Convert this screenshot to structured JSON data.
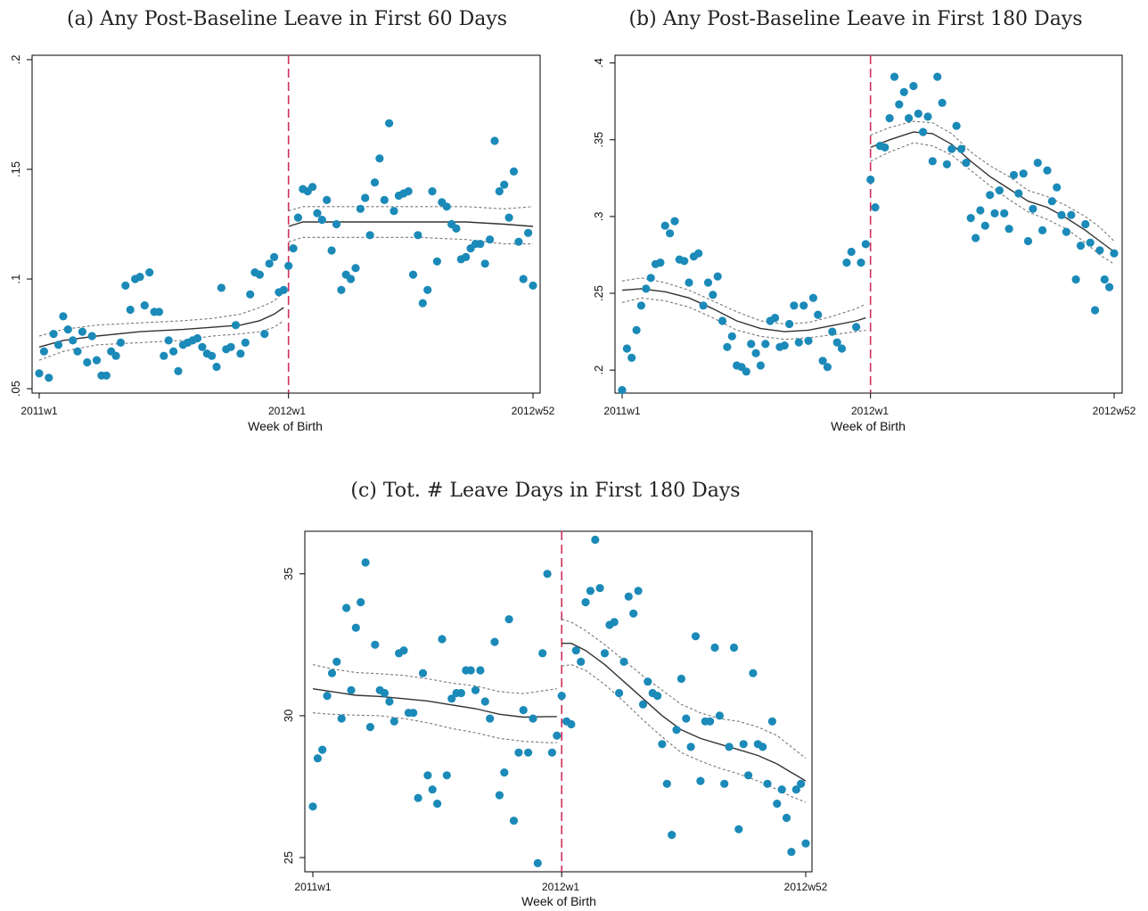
{
  "chart_data": [
    {
      "type": "scatter",
      "title": "(a) Any Post-Baseline Leave in First 60 Days",
      "xlabel": "Week of Birth",
      "ylabel": "",
      "x_ticks": [
        "2011w1",
        "2012w1",
        "2012w52"
      ],
      "y_ticks": [
        ".05",
        ".1",
        ".15",
        ".2"
      ],
      "y_tick_values": [
        0.05,
        0.1,
        0.15,
        0.2
      ],
      "xlim": [
        1,
        104
      ],
      "ylim": [
        0.048,
        0.202
      ],
      "cutoff_week": 53,
      "colors": {
        "points": "#1b8ab8",
        "fit": "#333333",
        "ci": "#777777",
        "cutoff": "#d0305a"
      },
      "x": [
        1,
        2,
        3,
        4,
        5,
        6,
        7,
        8,
        9,
        10,
        11,
        12,
        13,
        14,
        15,
        16,
        17,
        18,
        19,
        20,
        21,
        22,
        23,
        24,
        25,
        26,
        27,
        28,
        29,
        30,
        31,
        32,
        33,
        34,
        35,
        36,
        37,
        38,
        39,
        40,
        41,
        42,
        43,
        44,
        45,
        46,
        47,
        48,
        49,
        50,
        51,
        52,
        53,
        54,
        55,
        56,
        57,
        58,
        59,
        60,
        61,
        62,
        63,
        64,
        65,
        66,
        67,
        68,
        69,
        70,
        71,
        72,
        73,
        74,
        75,
        76,
        77,
        78,
        79,
        80,
        81,
        82,
        83,
        84,
        85,
        86,
        87,
        88,
        89,
        90,
        91,
        92,
        93,
        94,
        95,
        96,
        97,
        98,
        99,
        100,
        101,
        102,
        103,
        104
      ],
      "y": [
        0.057,
        0.067,
        0.055,
        0.075,
        0.07,
        0.083,
        0.077,
        0.072,
        0.067,
        0.076,
        0.062,
        0.074,
        0.063,
        0.056,
        0.056,
        0.067,
        0.065,
        0.071,
        0.097,
        0.086,
        0.1,
        0.101,
        0.088,
        0.103,
        0.085,
        0.085,
        0.065,
        0.072,
        0.067,
        0.058,
        0.07,
        0.071,
        0.072,
        0.073,
        0.069,
        0.066,
        0.065,
        0.06,
        0.096,
        0.068,
        0.069,
        0.079,
        0.066,
        0.071,
        0.093,
        0.103,
        0.102,
        0.075,
        0.107,
        0.11,
        0.094,
        0.095,
        0.106,
        0.114,
        0.128,
        0.141,
        0.14,
        0.142,
        0.13,
        0.127,
        0.136,
        0.113,
        0.125,
        0.095,
        0.102,
        0.1,
        0.105,
        0.132,
        0.137,
        0.12,
        0.144,
        0.155,
        0.136,
        0.171,
        0.131,
        0.138,
        0.139,
        0.14,
        0.102,
        0.12,
        0.089,
        0.095,
        0.14,
        0.108,
        0.135,
        0.133,
        0.125,
        0.123,
        0.109,
        0.11,
        0.114,
        0.116,
        0.116,
        0.107,
        0.118,
        0.163,
        0.14,
        0.143,
        0.128,
        0.149,
        0.117,
        0.1,
        0.121,
        0.097
      ],
      "fit_left": {
        "x": [
          1,
          6,
          13,
          22,
          31,
          37,
          43,
          47,
          50,
          52
        ],
        "y": [
          0.069,
          0.072,
          0.074,
          0.076,
          0.077,
          0.078,
          0.079,
          0.081,
          0.084,
          0.087
        ]
      },
      "ci_left_upper": {
        "x": [
          1,
          6,
          13,
          22,
          31,
          37,
          43,
          47,
          50,
          52
        ],
        "y": [
          0.074,
          0.077,
          0.079,
          0.08,
          0.081,
          0.082,
          0.084,
          0.087,
          0.09,
          0.094
        ]
      },
      "ci_left_lower": {
        "x": [
          1,
          6,
          13,
          22,
          31,
          37,
          43,
          47,
          50,
          52
        ],
        "y": [
          0.063,
          0.067,
          0.07,
          0.071,
          0.072,
          0.074,
          0.075,
          0.076,
          0.078,
          0.081
        ]
      },
      "fit_right": {
        "x": [
          53,
          56,
          62,
          70,
          80,
          90,
          98,
          104
        ],
        "y": [
          0.124,
          0.126,
          0.126,
          0.126,
          0.126,
          0.126,
          0.125,
          0.124
        ]
      },
      "ci_right_upper": {
        "x": [
          53,
          56,
          62,
          70,
          80,
          90,
          98,
          104
        ],
        "y": [
          0.131,
          0.133,
          0.133,
          0.133,
          0.133,
          0.133,
          0.132,
          0.133
        ]
      },
      "ci_right_lower": {
        "x": [
          53,
          56,
          62,
          70,
          80,
          90,
          98,
          104
        ],
        "y": [
          0.117,
          0.119,
          0.119,
          0.119,
          0.119,
          0.118,
          0.116,
          0.116
        ]
      }
    },
    {
      "type": "scatter",
      "title": "(b) Any Post-Baseline Leave in First 180 Days",
      "xlabel": "Week of Birth",
      "ylabel": "",
      "x_ticks": [
        "2011w1",
        "2012w1",
        "2012w52"
      ],
      "y_ticks": [
        ".2",
        ".25",
        ".3",
        ".35",
        ".4"
      ],
      "y_tick_values": [
        0.2,
        0.25,
        0.3,
        0.35,
        0.4
      ],
      "xlim": [
        1,
        104
      ],
      "ylim": [
        0.185,
        0.405
      ],
      "cutoff_week": 53,
      "colors": {
        "points": "#1b8ab8",
        "fit": "#333333",
        "ci": "#777777",
        "cutoff": "#d0305a"
      },
      "x": [
        1,
        2,
        3,
        4,
        5,
        6,
        7,
        8,
        9,
        10,
        11,
        12,
        13,
        14,
        15,
        16,
        17,
        18,
        19,
        20,
        21,
        22,
        23,
        24,
        25,
        26,
        27,
        28,
        29,
        30,
        31,
        32,
        33,
        34,
        35,
        36,
        37,
        38,
        39,
        40,
        41,
        42,
        43,
        44,
        45,
        46,
        47,
        48,
        49,
        50,
        51,
        52,
        53,
        54,
        55,
        56,
        57,
        58,
        59,
        60,
        61,
        62,
        63,
        64,
        65,
        66,
        67,
        68,
        69,
        70,
        71,
        72,
        73,
        74,
        75,
        76,
        77,
        78,
        79,
        80,
        81,
        82,
        83,
        84,
        85,
        86,
        87,
        88,
        89,
        90,
        91,
        92,
        93,
        94,
        95,
        96,
        97,
        98,
        99,
        100,
        101,
        102,
        103,
        104
      ],
      "y": [
        0.187,
        0.214,
        0.208,
        0.226,
        0.242,
        0.253,
        0.26,
        0.269,
        0.27,
        0.294,
        0.289,
        0.297,
        0.272,
        0.271,
        0.257,
        0.274,
        0.276,
        0.242,
        0.257,
        0.249,
        0.261,
        0.232,
        0.215,
        0.222,
        0.203,
        0.202,
        0.199,
        0.217,
        0.211,
        0.203,
        0.217,
        0.232,
        0.234,
        0.215,
        0.216,
        0.23,
        0.242,
        0.218,
        0.242,
        0.219,
        0.247,
        0.236,
        0.206,
        0.202,
        0.225,
        0.218,
        0.214,
        0.27,
        0.277,
        0.228,
        0.27,
        0.282,
        0.324,
        0.306,
        0.346,
        0.345,
        0.364,
        0.391,
        0.373,
        0.381,
        0.364,
        0.385,
        0.367,
        0.355,
        0.365,
        0.336,
        0.391,
        0.374,
        0.334,
        0.344,
        0.359,
        0.344,
        0.335,
        0.299,
        0.286,
        0.304,
        0.294,
        0.314,
        0.302,
        0.317,
        0.302,
        0.292,
        0.327,
        0.315,
        0.328,
        0.284,
        0.305,
        0.335,
        0.291,
        0.33,
        0.31,
        0.319,
        0.301,
        0.29,
        0.301,
        0.259,
        0.281,
        0.295,
        0.283,
        0.239,
        0.278,
        0.259,
        0.254,
        0.276
      ],
      "fit_left": {
        "x": [
          1,
          5,
          10,
          15,
          20,
          25,
          30,
          35,
          40,
          45,
          50,
          52
        ],
        "y": [
          0.252,
          0.253,
          0.251,
          0.247,
          0.24,
          0.232,
          0.227,
          0.225,
          0.226,
          0.229,
          0.232,
          0.234
        ]
      },
      "ci_left_upper": {
        "x": [
          1,
          5,
          10,
          15,
          20,
          25,
          30,
          35,
          40,
          45,
          50,
          52
        ],
        "y": [
          0.258,
          0.26,
          0.257,
          0.252,
          0.245,
          0.238,
          0.232,
          0.23,
          0.231,
          0.235,
          0.24,
          0.243
        ]
      },
      "ci_left_lower": {
        "x": [
          1,
          5,
          10,
          15,
          20,
          25,
          30,
          35,
          40,
          45,
          50,
          52
        ],
        "y": [
          0.244,
          0.247,
          0.245,
          0.241,
          0.234,
          0.226,
          0.222,
          0.22,
          0.221,
          0.223,
          0.225,
          0.226
        ]
      },
      "fit_right": {
        "x": [
          53,
          57,
          62,
          66,
          70,
          74,
          78,
          82,
          86,
          90,
          94,
          98,
          101,
          104
        ],
        "y": [
          0.345,
          0.35,
          0.355,
          0.354,
          0.347,
          0.336,
          0.326,
          0.318,
          0.31,
          0.306,
          0.299,
          0.291,
          0.284,
          0.277
        ]
      },
      "ci_right_upper": {
        "x": [
          53,
          57,
          62,
          66,
          70,
          74,
          78,
          82,
          86,
          90,
          94,
          98,
          101,
          104
        ],
        "y": [
          0.353,
          0.358,
          0.362,
          0.361,
          0.354,
          0.342,
          0.333,
          0.326,
          0.317,
          0.313,
          0.307,
          0.3,
          0.293,
          0.284
        ]
      },
      "ci_right_lower": {
        "x": [
          53,
          57,
          62,
          66,
          70,
          74,
          78,
          82,
          86,
          90,
          94,
          98,
          101,
          104
        ],
        "y": [
          0.336,
          0.342,
          0.348,
          0.346,
          0.34,
          0.33,
          0.32,
          0.311,
          0.303,
          0.298,
          0.292,
          0.283,
          0.275,
          0.269
        ]
      }
    },
    {
      "type": "scatter",
      "title": "(c) Tot. # Leave Days in First 180 Days",
      "xlabel": "Week of Birth",
      "ylabel": "",
      "x_ticks": [
        "2011w1",
        "2012w1",
        "2012w52"
      ],
      "y_ticks": [
        "25",
        "30",
        "35"
      ],
      "y_tick_values": [
        25,
        30,
        35
      ],
      "xlim": [
        1,
        104
      ],
      "ylim": [
        24.5,
        36.5
      ],
      "cutoff_week": 53,
      "colors": {
        "points": "#1b8ab8",
        "fit": "#333333",
        "ci": "#777777",
        "cutoff": "#d0305a"
      },
      "x": [
        1,
        2,
        3,
        4,
        5,
        6,
        7,
        8,
        9,
        10,
        11,
        12,
        13,
        14,
        15,
        16,
        17,
        18,
        19,
        20,
        21,
        22,
        23,
        24,
        25,
        26,
        27,
        28,
        29,
        30,
        31,
        32,
        33,
        34,
        35,
        36,
        37,
        38,
        39,
        40,
        41,
        42,
        43,
        44,
        45,
        46,
        47,
        48,
        49,
        50,
        51,
        52,
        53,
        54,
        55,
        56,
        57,
        58,
        59,
        60,
        61,
        62,
        63,
        64,
        65,
        66,
        67,
        68,
        69,
        70,
        71,
        72,
        73,
        74,
        75,
        76,
        77,
        78,
        79,
        80,
        81,
        82,
        83,
        84,
        85,
        86,
        87,
        88,
        89,
        90,
        91,
        92,
        93,
        94,
        95,
        96,
        97,
        98,
        99,
        100,
        101,
        102,
        103,
        104
      ],
      "y": [
        26.8,
        28.5,
        28.8,
        30.7,
        31.5,
        31.9,
        29.9,
        33.8,
        30.9,
        33.1,
        34.0,
        35.4,
        29.6,
        32.5,
        30.9,
        30.8,
        30.5,
        29.8,
        32.2,
        32.3,
        30.1,
        30.1,
        27.1,
        31.5,
        27.9,
        27.4,
        26.9,
        32.7,
        27.9,
        30.6,
        30.8,
        30.8,
        31.6,
        31.6,
        30.9,
        31.6,
        30.5,
        29.9,
        32.6,
        27.2,
        28.0,
        33.4,
        26.3,
        28.7,
        30.2,
        28.7,
        29.9,
        24.8,
        32.2,
        35.0,
        28.7,
        29.3,
        30.7,
        29.8,
        29.7,
        32.3,
        31.9,
        34.0,
        34.4,
        36.2,
        34.5,
        32.2,
        33.2,
        33.3,
        30.8,
        31.9,
        34.2,
        33.6,
        34.4,
        30.4,
        31.2,
        30.8,
        30.7,
        29.0,
        27.6,
        25.8,
        29.5,
        31.3,
        29.9,
        28.9,
        32.8,
        27.7,
        29.8,
        29.8,
        32.4,
        30.0,
        27.6,
        28.9,
        32.4,
        26.0,
        29.0,
        27.9,
        31.5,
        29.0,
        28.9,
        27.6,
        29.8,
        26.9,
        27.4,
        26.4,
        25.2,
        27.4,
        27.6,
        25.5
      ],
      "fit_left": {
        "x": [
          1,
          5,
          10,
          15,
          20,
          25,
          30,
          35,
          40,
          45,
          50,
          52
        ],
        "y": [
          30.95,
          30.85,
          30.72,
          30.68,
          30.6,
          30.52,
          30.38,
          30.25,
          30.05,
          29.95,
          29.97,
          29.97
        ]
      },
      "ci_left_upper": {
        "x": [
          1,
          5,
          10,
          15,
          20,
          25,
          30,
          35,
          40,
          45,
          50,
          52
        ],
        "y": [
          31.8,
          31.65,
          31.52,
          31.48,
          31.42,
          31.3,
          31.15,
          31.05,
          30.85,
          30.78,
          30.9,
          30.95
        ]
      },
      "ci_left_lower": {
        "x": [
          1,
          5,
          10,
          15,
          20,
          25,
          30,
          35,
          40,
          45,
          50,
          52
        ],
        "y": [
          30.1,
          30.05,
          30.02,
          30.0,
          29.9,
          29.75,
          29.55,
          29.4,
          29.2,
          29.1,
          29.05,
          29.05
        ]
      },
      "fit_right": {
        "x": [
          53,
          55,
          58,
          62,
          66,
          70,
          74,
          78,
          82,
          86,
          90,
          94,
          98,
          101,
          104
        ],
        "y": [
          32.55,
          32.55,
          32.3,
          31.8,
          31.2,
          30.6,
          30.0,
          29.5,
          29.2,
          29.0,
          28.8,
          28.6,
          28.3,
          28.0,
          27.7
        ]
      },
      "ci_right_upper": {
        "x": [
          53,
          55,
          58,
          62,
          66,
          70,
          74,
          78,
          82,
          86,
          90,
          94,
          98,
          101,
          104
        ],
        "y": [
          33.4,
          33.3,
          33.0,
          32.5,
          31.95,
          31.4,
          30.9,
          30.4,
          30.1,
          29.9,
          29.8,
          29.6,
          29.3,
          28.9,
          28.5
        ]
      },
      "ci_right_lower": {
        "x": [
          53,
          55,
          58,
          62,
          66,
          70,
          74,
          78,
          82,
          86,
          90,
          94,
          98,
          101,
          104
        ],
        "y": [
          31.75,
          31.8,
          31.6,
          31.1,
          30.5,
          29.85,
          29.25,
          28.7,
          28.4,
          28.15,
          27.95,
          27.7,
          27.4,
          27.15,
          26.95
        ]
      }
    }
  ]
}
